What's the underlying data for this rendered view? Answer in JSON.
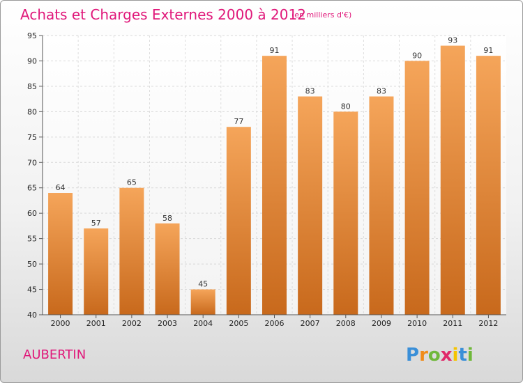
{
  "chart_data": {
    "type": "bar",
    "title": "Achats et Charges Externes 2000 à 2012",
    "subtitle": "(en milliers d'€)",
    "categories": [
      "2000",
      "2001",
      "2002",
      "2003",
      "2004",
      "2005",
      "2006",
      "2007",
      "2008",
      "2009",
      "2010",
      "2011",
      "2012"
    ],
    "values": [
      64,
      57,
      65,
      58,
      45,
      77,
      91,
      83,
      80,
      83,
      90,
      93,
      91
    ],
    "ylim": [
      40,
      95
    ],
    "yticks": [
      40,
      45,
      50,
      55,
      60,
      65,
      70,
      75,
      80,
      85,
      90,
      95
    ],
    "grid": true,
    "bar_color_top": "#f5a55a",
    "bar_color_bottom": "#c8691c"
  },
  "commune": "AUBERTIN",
  "logo": {
    "text": "Proxiti",
    "letters": [
      {
        "ch": "P",
        "color": "#3a8fd8"
      },
      {
        "ch": "r",
        "color": "#f08c1a"
      },
      {
        "ch": "o",
        "color": "#6fb83a"
      },
      {
        "ch": "x",
        "color": "#e02a6a"
      },
      {
        "ch": "i",
        "color": "#f5c400"
      },
      {
        "ch": "t",
        "color": "#3a8fd8"
      },
      {
        "ch": "i",
        "color": "#6fb83a"
      }
    ]
  }
}
